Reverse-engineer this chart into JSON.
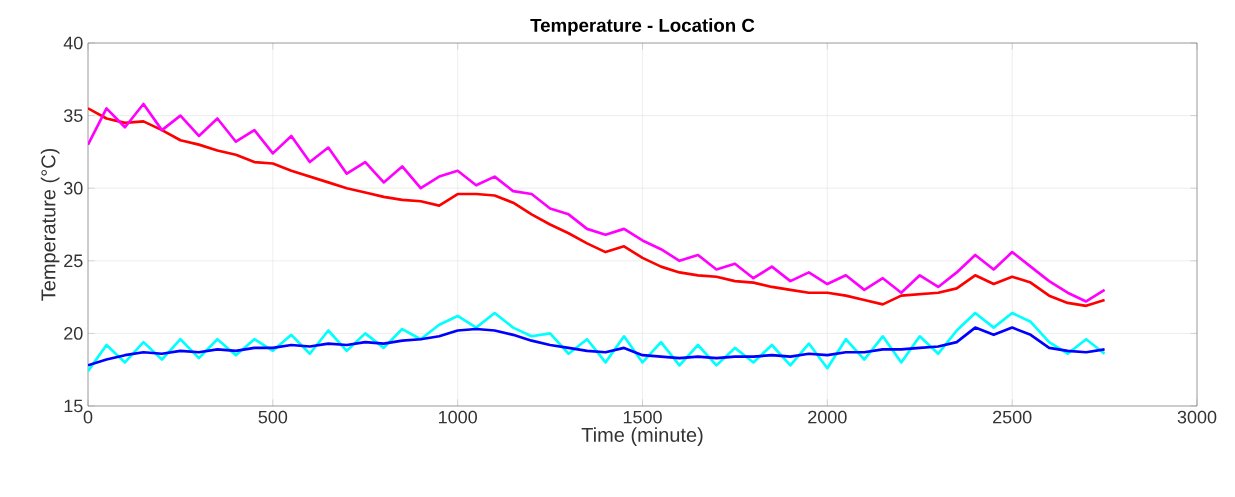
{
  "chart_data": {
    "type": "line",
    "title": "Temperature - Location C",
    "xlabel": "Time (minute)",
    "ylabel": "Temperature (°C)",
    "x": [
      0,
      50,
      100,
      150,
      200,
      250,
      300,
      350,
      400,
      450,
      500,
      550,
      600,
      650,
      700,
      750,
      800,
      850,
      900,
      950,
      1000,
      1050,
      1100,
      1150,
      1200,
      1250,
      1300,
      1350,
      1400,
      1450,
      1500,
      1550,
      1600,
      1650,
      1700,
      1750,
      1800,
      1850,
      1900,
      1950,
      2000,
      2050,
      2100,
      2150,
      2200,
      2250,
      2300,
      2350,
      2400,
      2450,
      2500,
      2550,
      2600,
      2650,
      2700,
      2750
    ],
    "series": [
      {
        "color": "#ff0000",
        "values": [
          35.5,
          34.8,
          34.5,
          34.6,
          34.0,
          33.3,
          33.0,
          32.6,
          32.3,
          31.8,
          31.7,
          31.2,
          30.8,
          30.4,
          30.0,
          29.7,
          29.4,
          29.2,
          29.1,
          28.8,
          29.6,
          29.6,
          29.5,
          29.0,
          28.2,
          27.5,
          26.9,
          26.2,
          25.6,
          26.0,
          25.2,
          24.6,
          24.2,
          24.0,
          23.9,
          23.6,
          23.5,
          23.2,
          23.0,
          22.8,
          22.8,
          22.6,
          22.3,
          22.0,
          22.6,
          22.7,
          22.8,
          23.1,
          24.0,
          23.4,
          23.9,
          23.5,
          22.6,
          22.1,
          21.9,
          22.3
        ]
      },
      {
        "color": "#ff00ff",
        "values": [
          33.0,
          35.5,
          34.2,
          35.8,
          34.0,
          35.0,
          33.6,
          34.8,
          33.2,
          34.0,
          32.4,
          33.6,
          31.8,
          32.8,
          31.0,
          31.8,
          30.4,
          31.5,
          30.0,
          30.8,
          31.2,
          30.2,
          30.8,
          29.8,
          29.6,
          28.6,
          28.2,
          27.2,
          26.8,
          27.2,
          26.4,
          25.8,
          25.0,
          25.4,
          24.4,
          24.8,
          23.8,
          24.6,
          23.6,
          24.2,
          23.4,
          24.0,
          23.0,
          23.8,
          22.8,
          24.0,
          23.2,
          24.2,
          25.4,
          24.4,
          25.6,
          24.6,
          23.6,
          22.8,
          22.2,
          23.0
        ]
      },
      {
        "color": "#00ffff",
        "values": [
          17.4,
          19.2,
          18.0,
          19.4,
          18.2,
          19.6,
          18.3,
          19.6,
          18.5,
          19.6,
          18.8,
          19.9,
          18.6,
          20.2,
          18.8,
          20.0,
          19.0,
          20.3,
          19.6,
          20.6,
          21.2,
          20.4,
          21.4,
          20.4,
          19.8,
          20.0,
          18.6,
          19.6,
          18.0,
          19.8,
          18.0,
          19.4,
          17.8,
          19.2,
          17.8,
          19.0,
          18.0,
          19.2,
          17.8,
          19.3,
          17.6,
          19.6,
          18.2,
          19.8,
          18.0,
          19.8,
          18.6,
          20.2,
          21.4,
          20.4,
          21.4,
          20.8,
          19.4,
          18.6,
          19.6,
          18.6
        ]
      },
      {
        "color": "#0000ff",
        "values": [
          17.8,
          18.2,
          18.5,
          18.7,
          18.6,
          18.8,
          18.7,
          18.9,
          18.8,
          19.0,
          19.0,
          19.2,
          19.1,
          19.3,
          19.2,
          19.4,
          19.3,
          19.5,
          19.6,
          19.8,
          20.2,
          20.3,
          20.2,
          19.9,
          19.5,
          19.2,
          19.0,
          18.8,
          18.7,
          19.0,
          18.5,
          18.4,
          18.3,
          18.4,
          18.3,
          18.4,
          18.4,
          18.5,
          18.4,
          18.6,
          18.5,
          18.7,
          18.7,
          18.9,
          18.9,
          19.0,
          19.1,
          19.4,
          20.4,
          19.9,
          20.4,
          19.9,
          19.0,
          18.8,
          18.7,
          18.9
        ]
      }
    ],
    "xlim": [
      0,
      3000
    ],
    "xticks": [
      0,
      500,
      1000,
      1500,
      2000,
      2500,
      3000
    ],
    "ylim": [
      15,
      40
    ],
    "yticks": [
      15,
      20,
      25,
      30,
      35,
      40
    ],
    "grid": true,
    "line_style": "solid"
  }
}
